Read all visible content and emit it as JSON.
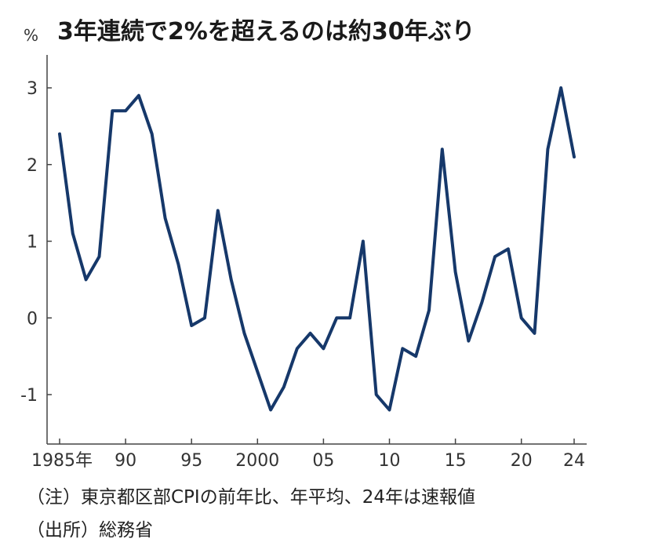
{
  "chart_data": {
    "type": "line",
    "title": "3年連続で2%を超えるのは約30年ぶり",
    "unit_label": "%",
    "ylim": [
      -1.6,
      3.4
    ],
    "xlim": [
      1985,
      2024
    ],
    "y_ticks": [
      {
        "value": 3,
        "label": "3"
      },
      {
        "value": 2,
        "label": "2"
      },
      {
        "value": 1,
        "label": "1"
      },
      {
        "value": 0,
        "label": "0"
      },
      {
        "value": -1,
        "label": "-1"
      }
    ],
    "x_ticks": [
      {
        "value": 1985,
        "label": "1985年"
      },
      {
        "value": 1990,
        "label": "90"
      },
      {
        "value": 1995,
        "label": "95"
      },
      {
        "value": 2000,
        "label": "2000"
      },
      {
        "value": 2005,
        "label": "05"
      },
      {
        "value": 2010,
        "label": "10"
      },
      {
        "value": 2015,
        "label": "15"
      },
      {
        "value": 2020,
        "label": "20"
      },
      {
        "value": 2024,
        "label": "24"
      }
    ],
    "series": [
      {
        "name": "東京都区部CPI",
        "color": "#16386a",
        "x": [
          1985,
          1986,
          1987,
          1988,
          1989,
          1990,
          1991,
          1992,
          1993,
          1994,
          1995,
          1996,
          1997,
          1998,
          1999,
          2000,
          2001,
          2002,
          2003,
          2004,
          2005,
          2006,
          2007,
          2008,
          2009,
          2010,
          2011,
          2012,
          2013,
          2014,
          2015,
          2016,
          2017,
          2018,
          2019,
          2020,
          2021,
          2022,
          2023,
          2024
        ],
        "values": [
          2.4,
          1.1,
          0.5,
          0.8,
          2.7,
          2.7,
          2.9,
          2.4,
          1.3,
          0.7,
          -0.1,
          0.0,
          1.4,
          0.5,
          -0.2,
          -0.7,
          -1.2,
          -0.9,
          -0.4,
          -0.2,
          -0.4,
          0.0,
          0.0,
          1.0,
          -1.0,
          -1.2,
          -0.4,
          -0.5,
          0.1,
          2.2,
          0.6,
          -0.3,
          0.2,
          0.8,
          0.9,
          0.0,
          -0.2,
          2.2,
          3.0,
          2.1
        ]
      }
    ]
  },
  "notes": {
    "note": "（注）東京都区部CPIの前年比、年平均、24年は速報値",
    "source": "（出所）総務省"
  }
}
